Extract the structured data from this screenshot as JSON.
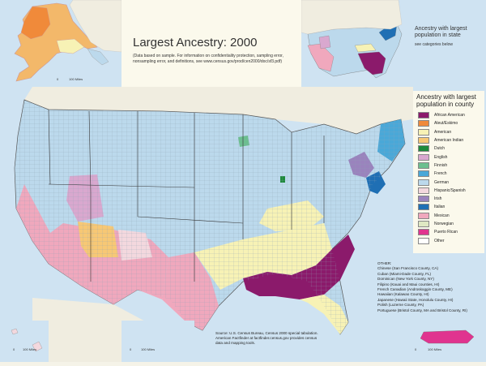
{
  "title": "Largest Ancestry: 2000",
  "note": "(Data based on sample. For information on confidentiality protection, sampling error, nonsampling error, and definitions, see www.census.gov/prod/cen2000/doc/sf3.pdf)",
  "state_inset": {
    "title": "Ancestry with largest population in state",
    "subtitle": "see categories below"
  },
  "legend": {
    "title": "Ancestry with largest population in county",
    "items": [
      {
        "label": "African American",
        "color": "#8b1a6b"
      },
      {
        "label": "Aleut/Eskimo",
        "color": "#f08a3a"
      },
      {
        "label": "American",
        "color": "#f7f2b5"
      },
      {
        "label": "American Indian",
        "color": "#f7c875"
      },
      {
        "label": "Dutch",
        "color": "#1e8a3c"
      },
      {
        "label": "English",
        "color": "#d9a8cf"
      },
      {
        "label": "Finnish",
        "color": "#6cbf8f"
      },
      {
        "label": "French",
        "color": "#4aa8d8"
      },
      {
        "label": "German",
        "color": "#bcd9ec"
      },
      {
        "label": "Hispanic/Spanish",
        "color": "#f3d8de"
      },
      {
        "label": "Irish",
        "color": "#9a83bd"
      },
      {
        "label": "Italian",
        "color": "#1f6fb4"
      },
      {
        "label": "Mexican",
        "color": "#f0a8bd"
      },
      {
        "label": "Norwegian",
        "color": "#dfe8c3"
      },
      {
        "label": "Puerto Rican",
        "color": "#e0348f"
      },
      {
        "label": "Other",
        "color": "#ffffff"
      }
    ]
  },
  "other": {
    "heading": "OTHER:",
    "items": [
      "Chinese (San Francisco County, CA)",
      "Cuban (Miami-Dade County, FL)",
      "Dominican (New York County, NY)",
      "Filipino (Kauai and Maui counties, HI)",
      "French Canadian (Androskoggin County, ME)",
      "Hawaiian (Kalawao County, HI)",
      "Japanese (Hawaii State, Honolulu County, HI)",
      "Polish (Luzerne County, PA)",
      "Portuguese (Bristol County, MA and Bristol County, RI)"
    ]
  },
  "source": "Source: U.S. Census Bureau, Census 2000 special tabulation. American Factfinder at factfinder.census.gov provides census data and mapping tools.",
  "scales": {
    "alaska": "100 Miles",
    "hawaii": "100 Miles",
    "conus": "100 Miles",
    "puerto_rico": "100 Miles",
    "zero": "0"
  }
}
